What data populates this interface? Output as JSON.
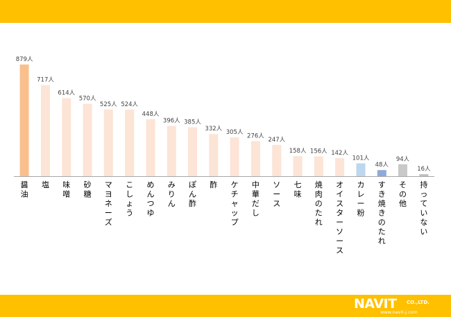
{
  "colors": {
    "frame": "#ffc000",
    "bar_highlight": "#f9c08e",
    "bar_default": "#fce4d6",
    "bar_curry": "#bdd7ee",
    "bar_sukiyaki": "#8eaadb",
    "bar_other": "#c9c9c9",
    "bar_none": "#bfbfbf",
    "axis": "#a6a6a6",
    "text": "#404040"
  },
  "brand": {
    "logo": "NAVIT",
    "company_suffix": "CO.,LTD.",
    "url": "www.navit-j.com"
  },
  "chart_data": {
    "type": "bar",
    "categories": [
      "醤油",
      "塩",
      "味噌",
      "砂糖",
      "マヨネーズ",
      "こしょう",
      "めんつゆ",
      "みりん",
      "ぽん酢",
      "酢",
      "ケチャップ",
      "中華だし",
      "ソース",
      "七味",
      "焼肉のたれ",
      "オイスターソース",
      "カレー粉",
      "すき焼きのたれ",
      "その他",
      "持っていない"
    ],
    "values": [
      879,
      717,
      614,
      570,
      525,
      524,
      448,
      396,
      385,
      332,
      305,
      276,
      247,
      158,
      156,
      142,
      101,
      48,
      94,
      16
    ],
    "data_labels": [
      "879人",
      "717人",
      "614人",
      "570人",
      "525人",
      "524人",
      "448人",
      "396人",
      "385人",
      "332人",
      "305人",
      "276人",
      "247人",
      "158人",
      "156人",
      "142人",
      "101人",
      "48人",
      "94人",
      "16人"
    ],
    "unit": "人",
    "ylim": [
      0,
      879
    ],
    "grid": false,
    "legend": "none"
  }
}
